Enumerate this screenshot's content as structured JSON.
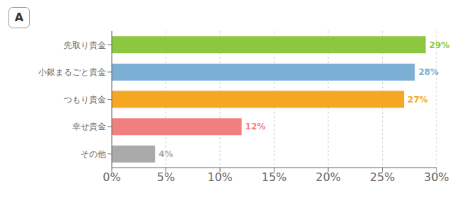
{
  "chart_data": {
    "type": "bar",
    "orientation": "horizontal",
    "categories": [
      "先取り貴金",
      "小銀まるごと貴金",
      "つもり貴金",
      "幸せ貴金",
      "その他"
    ],
    "values": [
      29,
      28,
      27,
      12,
      4
    ],
    "value_labels": [
      "29%",
      "28%",
      "27%",
      "12%",
      "4%"
    ],
    "data_labels": true,
    "colors": [
      "#8dc63f",
      "#7bafd4",
      "#f5a623",
      "#f08080",
      "#aaaaaa"
    ],
    "xlim": [
      0,
      30
    ],
    "xticks": [
      {
        "value": 0,
        "label": "0%"
      },
      {
        "value": 5,
        "label": "5%"
      },
      {
        "value": 10,
        "label": "10%"
      },
      {
        "value": 15,
        "label": "15%"
      },
      {
        "value": 20,
        "label": "20%"
      },
      {
        "value": 25,
        "label": "25%"
      },
      {
        "value": 30,
        "label": "30%"
      }
    ],
    "grid": true,
    "annotations": [
      "A"
    ]
  }
}
